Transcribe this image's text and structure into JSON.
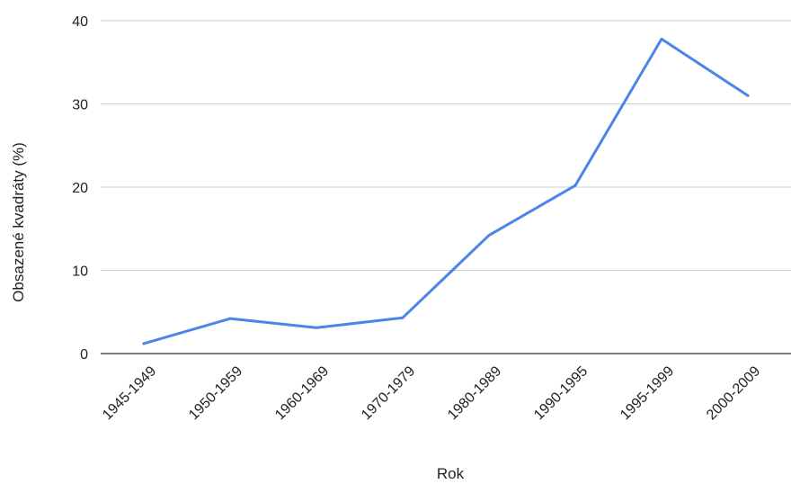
{
  "chart_data": {
    "type": "line",
    "title": "",
    "xlabel": "Rok",
    "ylabel": "Obsazené kvadráty (%)",
    "categories": [
      "1945-1949",
      "1950-1959",
      "1960-1969",
      "1970-1979",
      "1980-1989",
      "1990-1995",
      "1995-1999",
      "2000-2009"
    ],
    "series": [
      {
        "values": [
          1.2,
          4.2,
          3.1,
          4.3,
          14.2,
          20.2,
          37.8,
          31.0
        ]
      }
    ],
    "ylim": [
      0,
      40
    ],
    "yticks": [
      0,
      10,
      20,
      30,
      40
    ],
    "grid": true,
    "legend": "none",
    "line_color": "#4a86e8"
  }
}
